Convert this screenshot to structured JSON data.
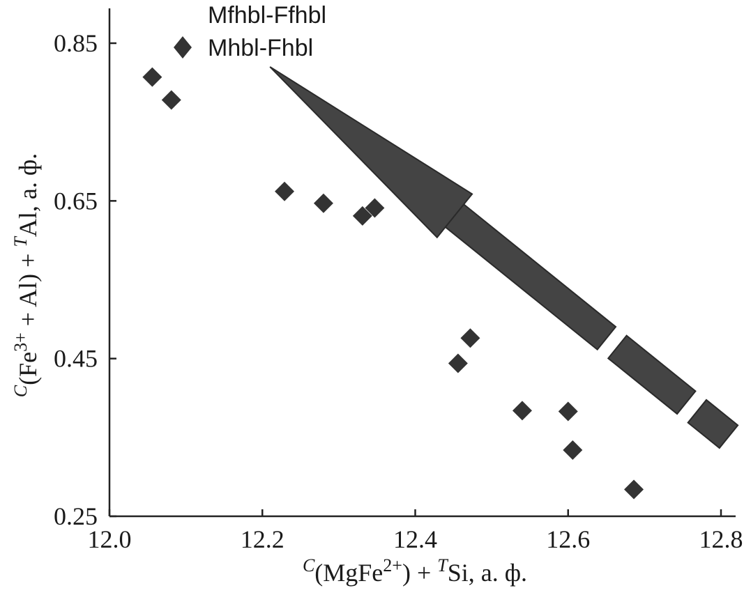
{
  "chart_data": {
    "type": "scatter",
    "xlabel": {
      "sup1": "C",
      "mid": "(MgFe",
      "sup2": "2+",
      "mid2": ") + ",
      "sup3": "T",
      "tail": "Si, a. ф."
    },
    "ylabel": {
      "sup1": "C",
      "mid": "(Fe",
      "sup2": "3+",
      "mid2": " + Al) + ",
      "sup3": "T",
      "tail": "Al, a. ф."
    },
    "xlim": [
      12.0,
      12.8
    ],
    "ylim": [
      0.25,
      0.85
    ],
    "xticks": [
      "12.0",
      "12.2",
      "12.4",
      "12.6",
      "12.8"
    ],
    "yticks": [
      "0.25",
      "0.45",
      "0.65",
      "0.85"
    ],
    "xtick_values": [
      12.0,
      12.2,
      12.4,
      12.6,
      12.8
    ],
    "ytick_values": [
      0.25,
      0.45,
      0.65,
      0.85
    ],
    "grid": false,
    "legend_position": "top-center",
    "series": [
      {
        "name": "Mhbl-Fhbl",
        "marker": "diamond",
        "color": "#333333",
        "points": [
          {
            "x": 12.056,
            "y": 0.807
          },
          {
            "x": 12.081,
            "y": 0.778
          },
          {
            "x": 12.229,
            "y": 0.662
          },
          {
            "x": 12.28,
            "y": 0.647
          },
          {
            "x": 12.331,
            "y": 0.631
          },
          {
            "x": 12.347,
            "y": 0.641
          },
          {
            "x": 12.472,
            "y": 0.476
          },
          {
            "x": 12.456,
            "y": 0.444
          },
          {
            "x": 12.54,
            "y": 0.384
          },
          {
            "x": 12.6,
            "y": 0.383
          },
          {
            "x": 12.606,
            "y": 0.334
          },
          {
            "x": 12.686,
            "y": 0.284
          }
        ]
      }
    ],
    "annotations": [
      {
        "type": "arrow",
        "label": "Mfhbl-Ffhbl",
        "from": {
          "x": 12.81,
          "y": 0.351
        },
        "to": {
          "x": 12.21,
          "y": 0.82
        },
        "style": "dashed-block-arrow",
        "color": "#444444"
      }
    ]
  }
}
